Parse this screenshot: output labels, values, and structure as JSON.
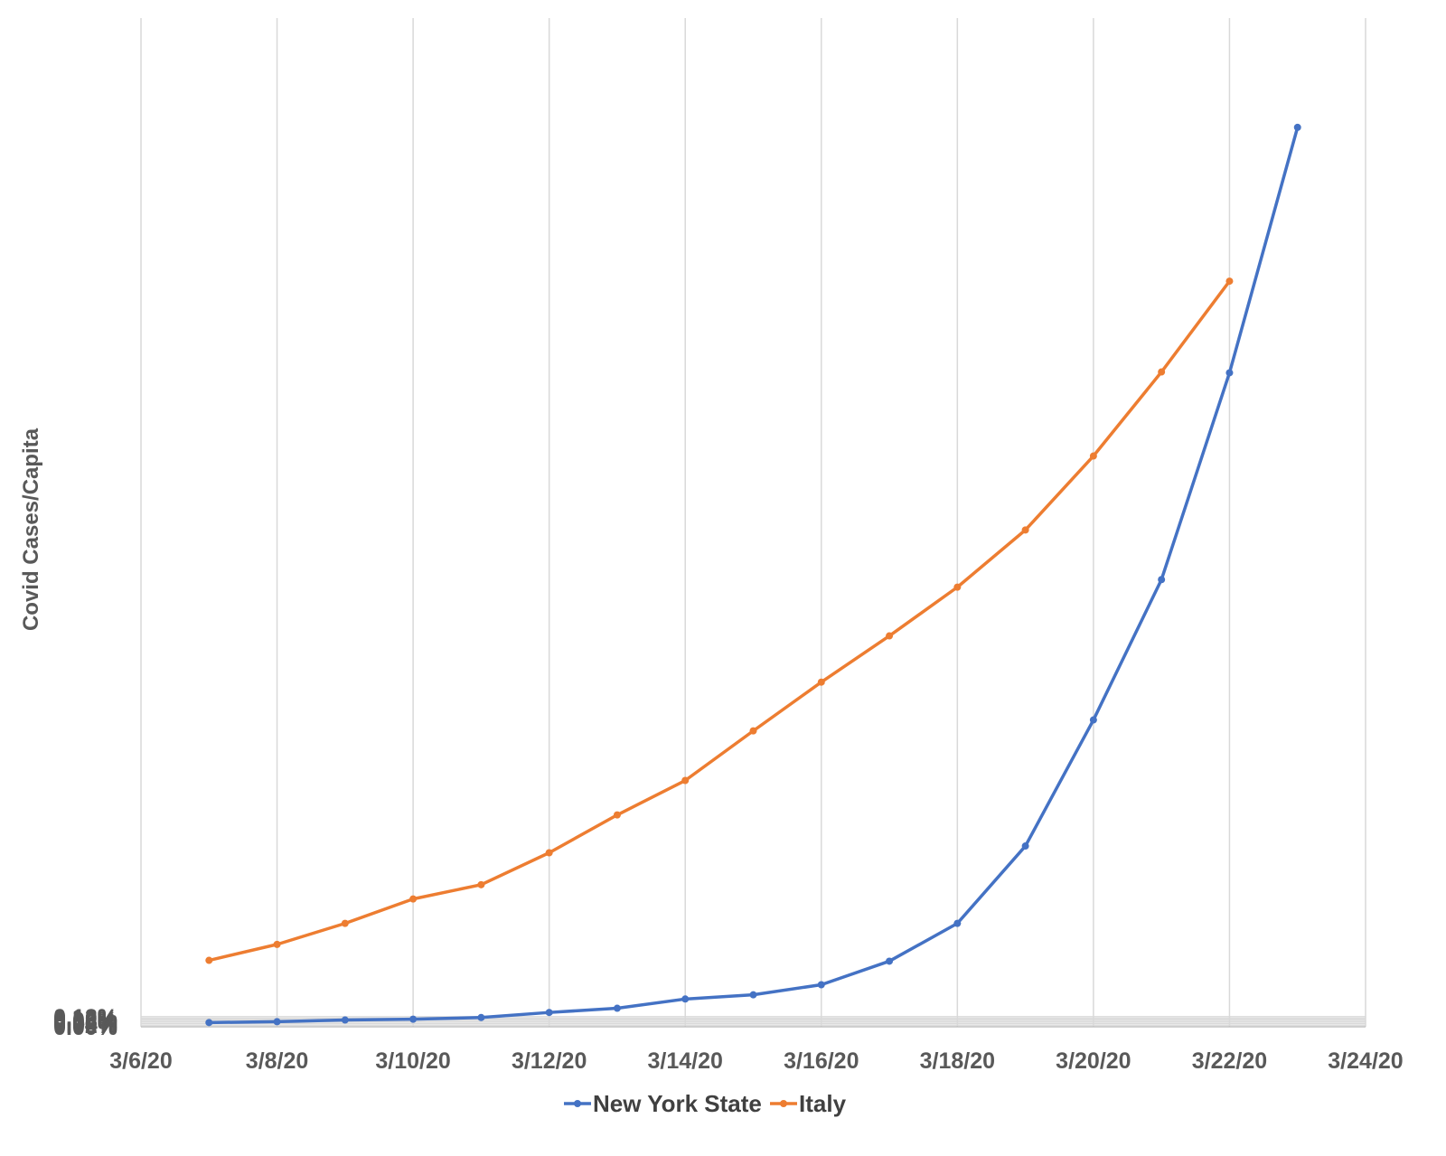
{
  "chart_data": {
    "type": "line",
    "title": "",
    "xlabel": "",
    "ylabel": "Covid Cases/Capita",
    "x_tick_labels": [
      "3/6/20",
      "3/8/20",
      "3/10/20",
      "3/12/20",
      "3/14/20",
      "3/16/20",
      "3/18/20",
      "3/20/20",
      "3/22/20",
      "3/24/20"
    ],
    "y_tick_labels": [
      "0.00%",
      "0.02%",
      "0.04%",
      "0.06%",
      "0.08%",
      "0.10%",
      "0.12%"
    ],
    "xlim": [
      "3/6/20",
      "3/24/20"
    ],
    "ylim": [
      0,
      0.12
    ],
    "y_unit": "%",
    "grid": true,
    "legend_position": "bottom",
    "series": [
      {
        "name": "New York State",
        "color": "#4472c4",
        "x": [
          "3/7/20",
          "3/8/20",
          "3/9/20",
          "3/10/20",
          "3/11/20",
          "3/12/20",
          "3/13/20",
          "3/14/20",
          "3/15/20",
          "3/16/20",
          "3/17/20",
          "3/18/20",
          "3/19/20",
          "3/20/20",
          "3/21/20",
          "3/22/20",
          "3/23/20"
        ],
        "values": [
          0.0005,
          0.0006,
          0.0008,
          0.0009,
          0.0011,
          0.0017,
          0.0022,
          0.0033,
          0.0038,
          0.005,
          0.0078,
          0.0123,
          0.0215,
          0.0365,
          0.0532,
          0.0778,
          0.107
        ]
      },
      {
        "name": "Italy",
        "color": "#ed7d31",
        "x": [
          "3/7/20",
          "3/8/20",
          "3/9/20",
          "3/10/20",
          "3/11/20",
          "3/12/20",
          "3/13/20",
          "3/14/20",
          "3/15/20",
          "3/16/20",
          "3/17/20",
          "3/18/20",
          "3/19/20",
          "3/20/20",
          "3/21/20",
          "3/22/20"
        ],
        "values": [
          0.0079,
          0.0098,
          0.0123,
          0.0152,
          0.0169,
          0.0207,
          0.0252,
          0.0293,
          0.0352,
          0.041,
          0.0465,
          0.0523,
          0.0591,
          0.0679,
          0.0779,
          0.0887
        ]
      }
    ]
  }
}
